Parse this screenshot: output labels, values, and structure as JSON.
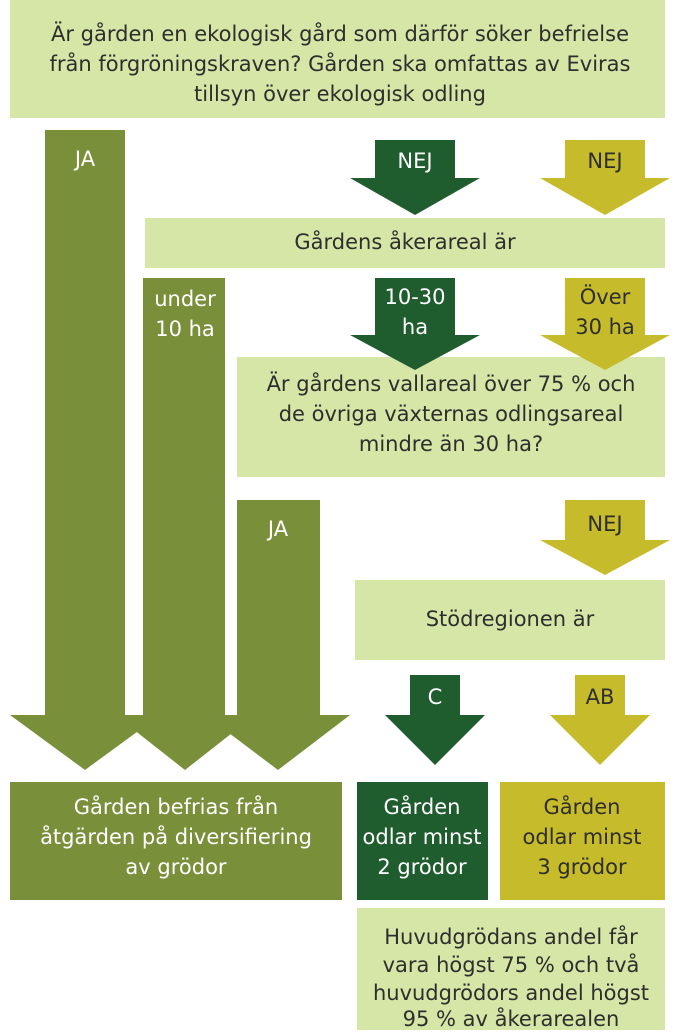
{
  "boxes": [
    {
      "lines": [
        "Är gården en ekologisk gård som därför söker befrielse",
        "från förgröningskraven? Gården ska omfattas av Eviras",
        "tillsyn över ekologisk odling"
      ]
    },
    {
      "lines": [
        "Gårdens åkerareal är"
      ]
    },
    {
      "lines": [
        "Är gårdens vallareal över 75 % och",
        "de övriga växternas odlingsareal",
        "mindre än 30 ha?"
      ]
    },
    {
      "lines": [
        "Stödregionen är"
      ]
    },
    {
      "lines": [
        "Gården befrias från",
        "åtgärden på diversifiering",
        "av grödor"
      ]
    },
    {
      "lines": [
        "Gården",
        "odlar minst",
        "2 grödor"
      ]
    },
    {
      "lines": [
        "Gården",
        "odlar minst",
        "3 grödor"
      ]
    },
    {
      "lines": [
        "Huvudgrödans andel får",
        "vara högst 75 % och två",
        "huvudgrödors andel högst",
        "95 % av åkerarealen"
      ]
    }
  ],
  "arrows": [
    {
      "label": [
        "JA"
      ]
    },
    {
      "label": [
        "NEJ"
      ]
    },
    {
      "label": [
        "NEJ"
      ]
    },
    {
      "label": [
        "under",
        "10 ha"
      ]
    },
    {
      "label": [
        "10-30",
        "ha"
      ]
    },
    {
      "label": [
        "Över",
        "30 ha"
      ]
    },
    {
      "label": [
        "JA"
      ]
    },
    {
      "label": [
        "NEJ"
      ]
    },
    {
      "label": [
        "C"
      ]
    },
    {
      "label": [
        "AB"
      ]
    }
  ]
}
